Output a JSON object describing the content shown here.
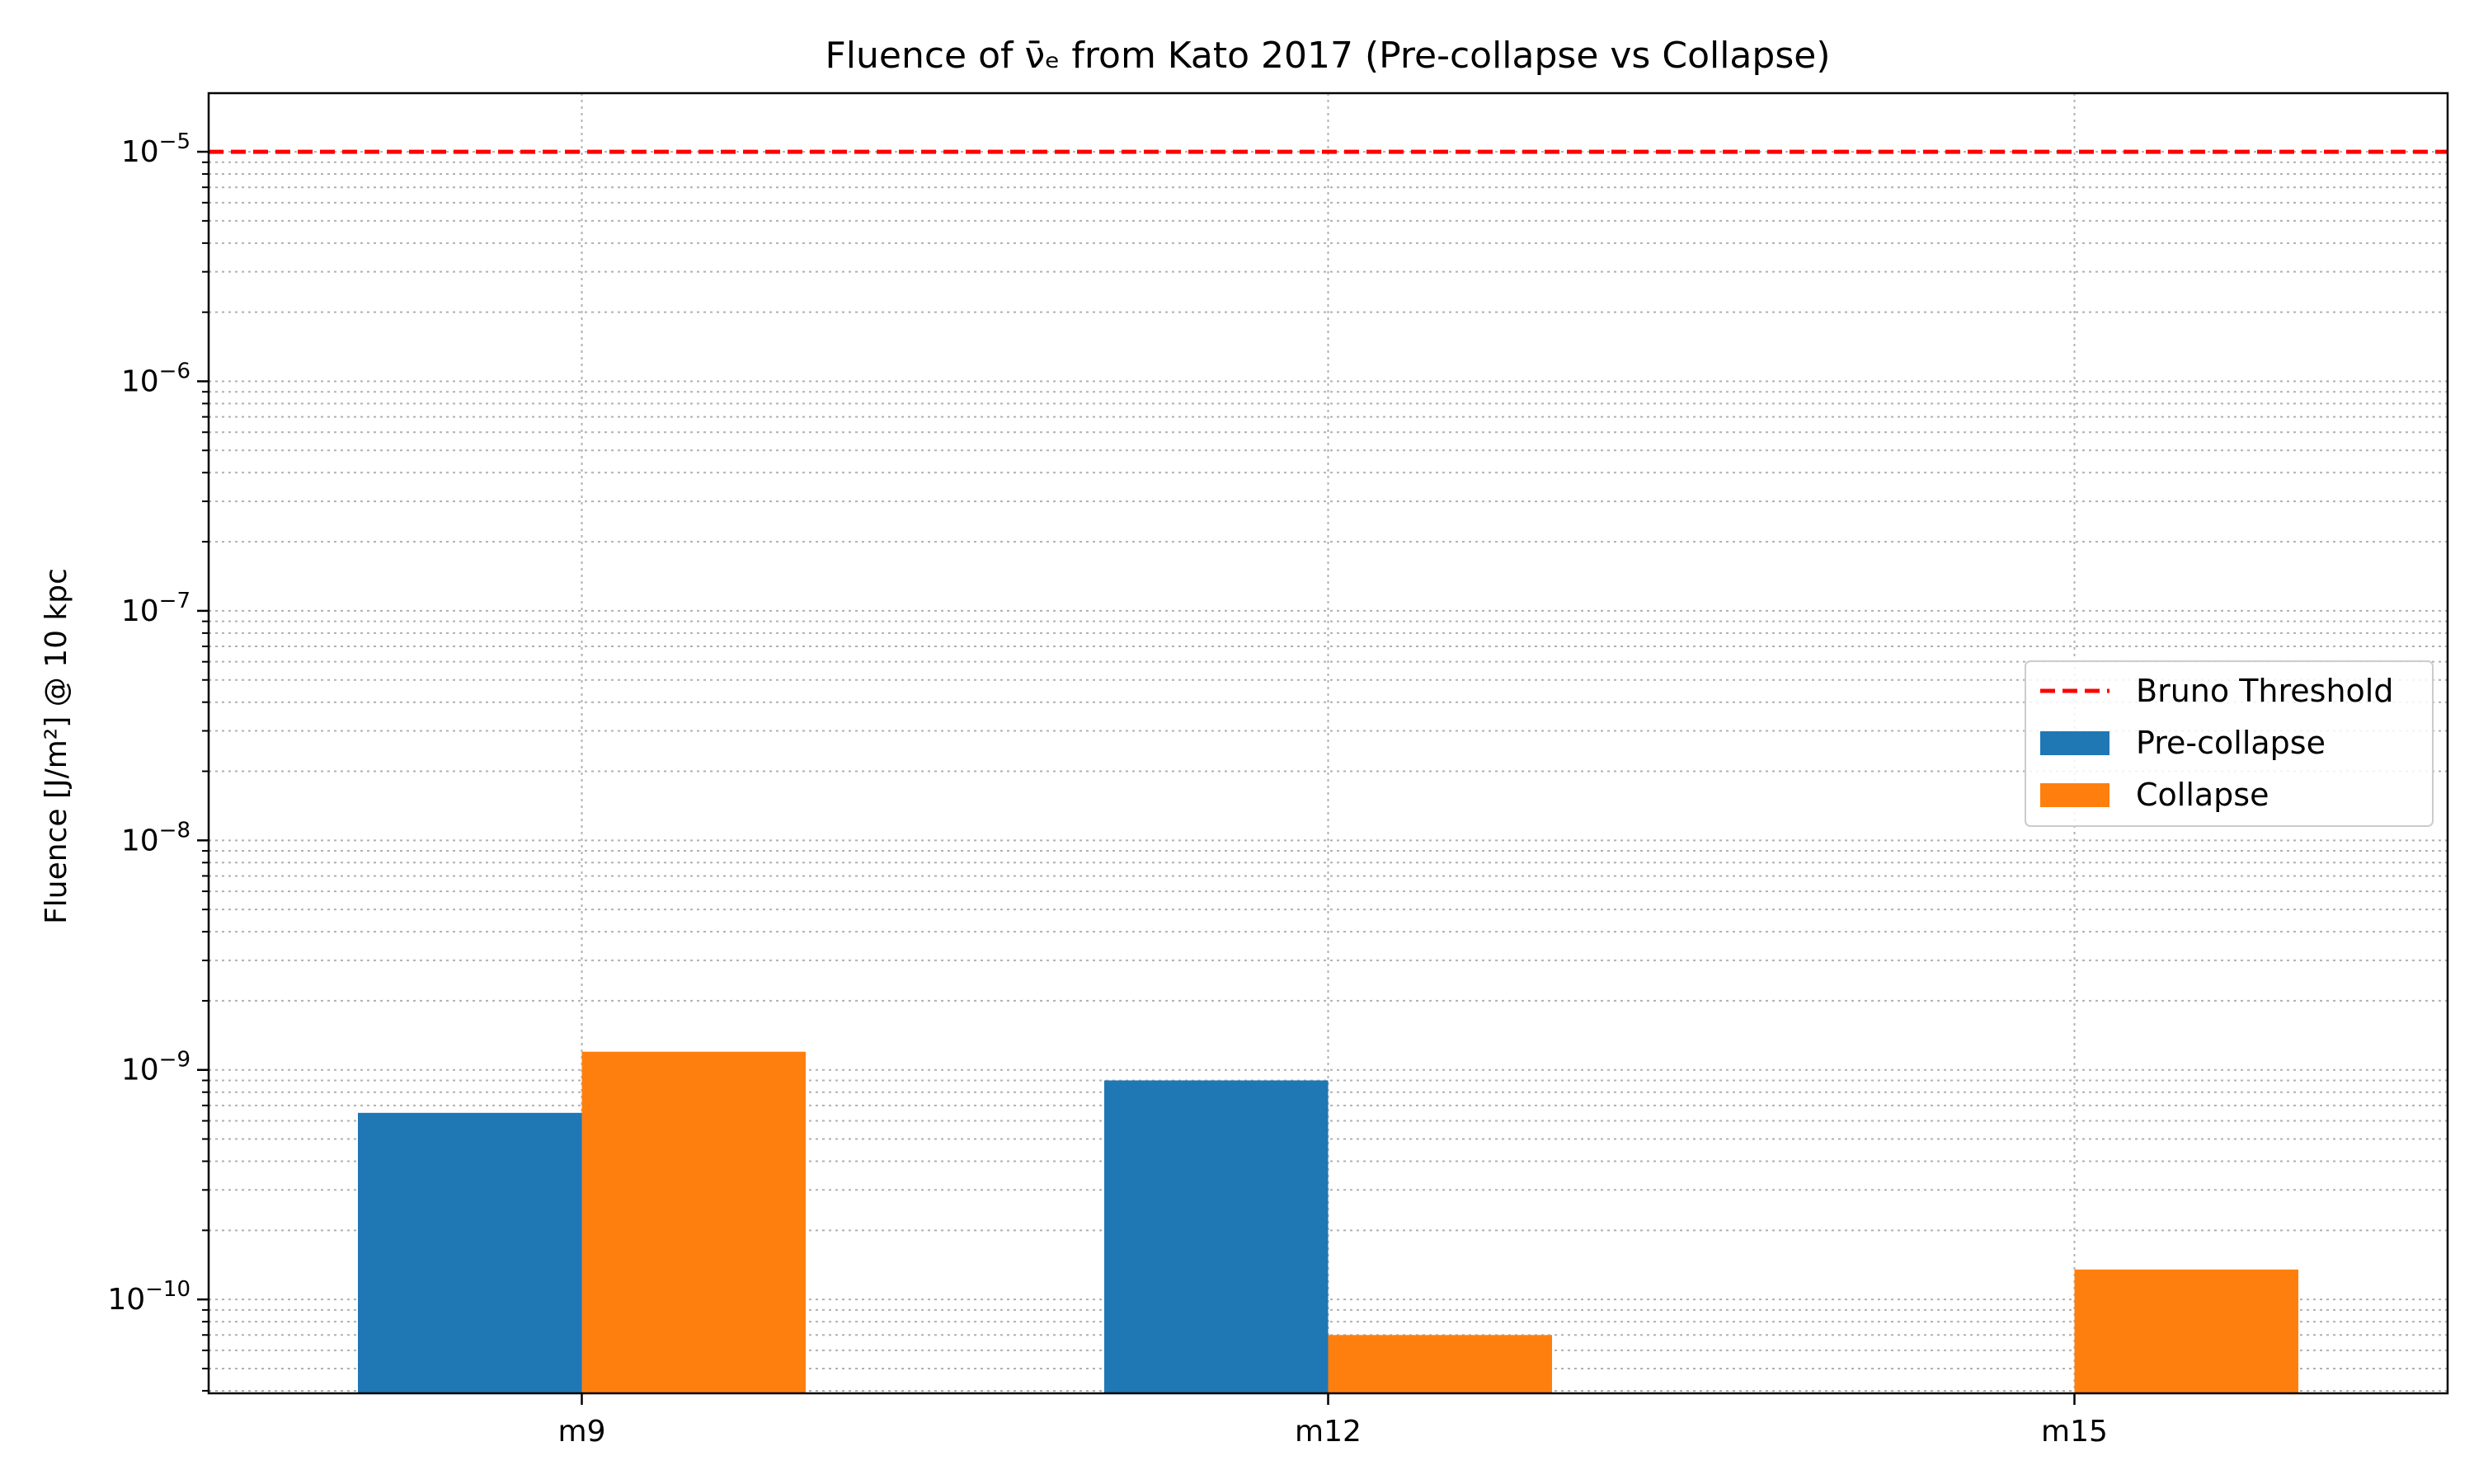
{
  "chart_data": {
    "type": "bar",
    "title": "Fluence of ν̄ₑ from Kato 2017 (Pre-collapse vs Collapse)",
    "xlabel": "",
    "ylabel": "Fluence [J/m²] @ 10 kpc",
    "yscale": "log",
    "ylim": [
      3.9e-11,
      1.8e-05
    ],
    "yticks": [
      {
        "value": 1e-10,
        "base": "10",
        "exp": "−10"
      },
      {
        "value": 1e-09,
        "base": "10",
        "exp": "−9"
      },
      {
        "value": 1e-08,
        "base": "10",
        "exp": "−8"
      },
      {
        "value": 1e-07,
        "base": "10",
        "exp": "−7"
      },
      {
        "value": 1e-06,
        "base": "10",
        "exp": "−6"
      },
      {
        "value": 1e-05,
        "base": "10",
        "exp": "−5"
      }
    ],
    "categories": [
      "m9",
      "m12",
      "m15"
    ],
    "series": [
      {
        "name": "Pre-collapse",
        "color": "#1f77b4",
        "values": [
          6.5e-10,
          9e-10,
          null
        ]
      },
      {
        "name": "Collapse",
        "color": "#ff7f0e",
        "values": [
          1.2e-09,
          7e-11,
          1.35e-10
        ]
      }
    ],
    "reference_lines": [
      {
        "name": "Bruno Threshold",
        "value": 1e-05,
        "color": "#ff0000",
        "style": "dashed"
      }
    ],
    "grid": true,
    "legend_position": "center-right",
    "legend": [
      "Bruno Threshold",
      "Pre-collapse",
      "Collapse"
    ]
  }
}
